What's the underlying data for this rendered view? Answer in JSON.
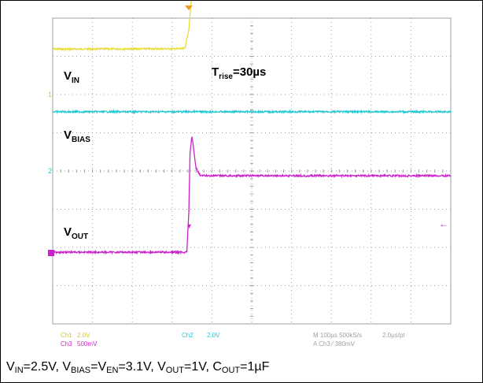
{
  "chart_data": {
    "type": "line",
    "x_unit": "µs",
    "x_range": [
      -500,
      500
    ],
    "time_per_div_us": 100,
    "trigger_time_us": 0,
    "series": [
      {
        "name": "VIN",
        "channel": "Ch1",
        "color": "#e8dc3c",
        "unit": "V",
        "volts_per_div": 2.0,
        "points": [
          [
            -500,
            2.42
          ],
          [
            -320,
            2.4
          ],
          [
            -10,
            2.42
          ],
          [
            0,
            3.4
          ],
          [
            8,
            5.4
          ],
          [
            20,
            5.9
          ],
          [
            40,
            6.2
          ],
          [
            70,
            6.35
          ],
          [
            100,
            6.42
          ],
          [
            200,
            6.5
          ],
          [
            300,
            6.55
          ],
          [
            500,
            6.58
          ]
        ]
      },
      {
        "name": "VBIAS",
        "channel": "Ch2",
        "color": "#28c8d2",
        "unit": "V",
        "volts_per_div": 2.0,
        "points": [
          [
            -500,
            3.1
          ],
          [
            0,
            3.1
          ],
          [
            500,
            3.1
          ]
        ]
      },
      {
        "name": "VOUT",
        "channel": "Ch3",
        "color": "#cc22cc",
        "unit": "V",
        "volts_per_div": 0.5,
        "points": [
          [
            -500,
            0.0
          ],
          [
            -5,
            0.0
          ],
          [
            0,
            0.5
          ],
          [
            3,
            1.3
          ],
          [
            8,
            1.52
          ],
          [
            18,
            1.1
          ],
          [
            30,
            1.0
          ],
          [
            500,
            1.0
          ]
        ]
      }
    ]
  },
  "labels": {
    "vin": {
      "main": "V",
      "sub": "IN"
    },
    "trise": {
      "main": "T",
      "sub": "rise",
      "rest": "=30µs"
    },
    "vbias": {
      "main": "V",
      "sub": "BIAS"
    },
    "vout": {
      "main": "V",
      "sub": "OUT"
    }
  },
  "markers": {
    "ch1": "1",
    "ch2": "2"
  },
  "readout": {
    "ch1": "Ch1",
    "ch1_scale": "2.0V",
    "ch3": "Ch3",
    "ch3_scale": "500mV",
    "ch2": "Ch2",
    "ch2_scale": "2.0V",
    "timebase": "M 100µs 500kS/s",
    "resolution": "2.0µs/pt",
    "trigger": "A  Ch3  ⁄  380mV"
  },
  "caption": {
    "v": "V",
    "in_sub": "IN",
    "in_val": "=2.5V, ",
    "bias_sub": "BIAS",
    "eq": "=V",
    "en_sub": "EN",
    "en_val": "=3.1V, ",
    "out_sub": "OUT",
    "out_val": "=1V, ",
    "c": "C",
    "cout_sub": "OUT",
    "cout_val": "=1µF"
  },
  "colors": {
    "grid": "#a0a0a0",
    "ch1": "#e8dc3c",
    "ch2": "#28c8d2",
    "ch3": "#cc22cc",
    "trigger": "#f29a2a"
  }
}
